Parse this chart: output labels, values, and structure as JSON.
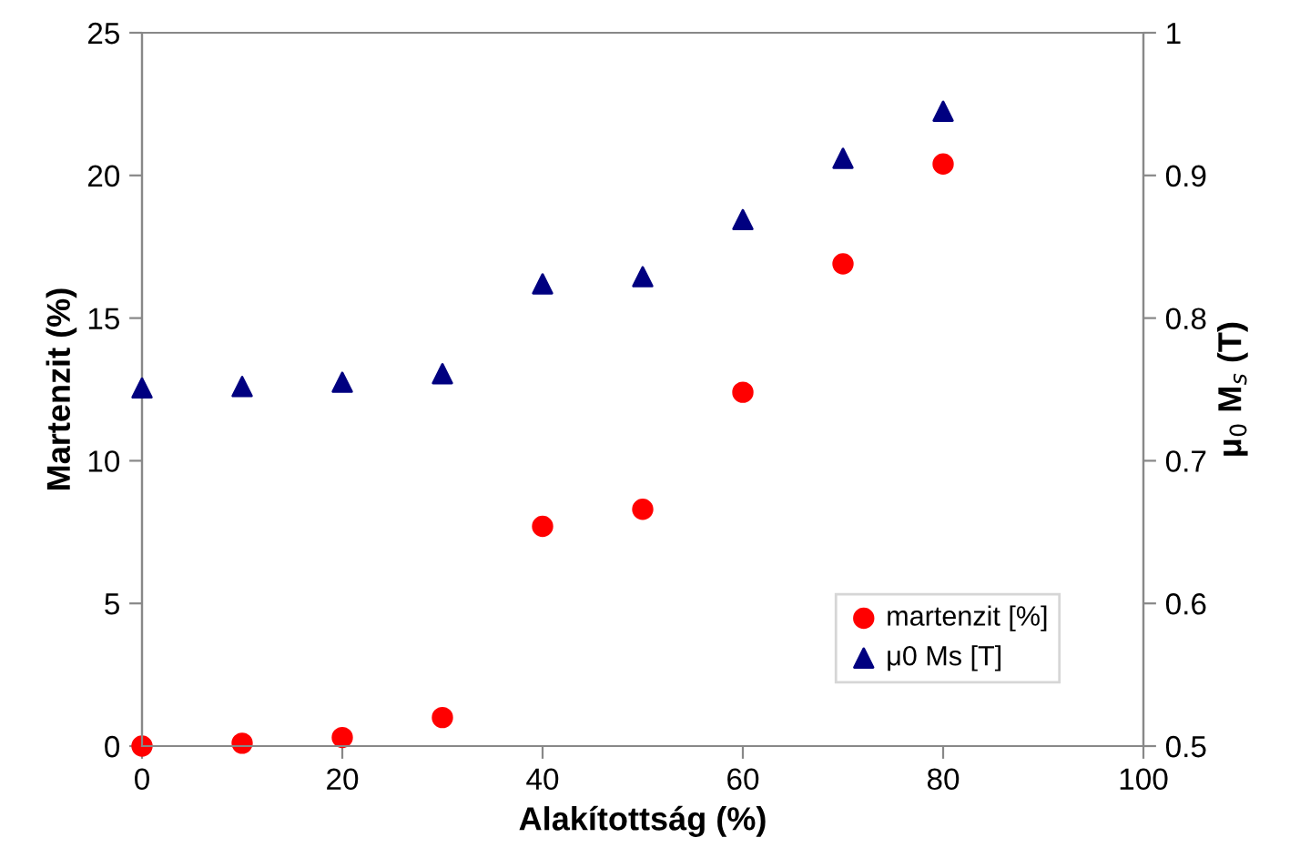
{
  "chart_data": {
    "type": "scatter",
    "xlabel": "Alakítottság (%)",
    "ylabel": "Martenzit (%)",
    "y2label": "μ$_{0}$ M$_{s}$ (T)",
    "x": [
      0,
      10,
      20,
      30,
      40,
      50,
      60,
      70,
      80
    ],
    "series": [
      {
        "name": "martenzit [%]",
        "color": "#ff0000",
        "marker": "circle",
        "values": [
          0,
          0.1,
          0.3,
          1.0,
          7.7,
          8.3,
          12.4,
          16.9,
          20.4
        ]
      },
      {
        "name": "μ0 Ms [T]",
        "color": "#000080",
        "marker": "triangle",
        "axis": "y2",
        "values": [
          0.751,
          0.752,
          0.755,
          0.761,
          0.824,
          0.829,
          0.869,
          0.912,
          0.945
        ]
      }
    ],
    "xlim": [
      0,
      100
    ],
    "xticks": [
      0,
      20,
      40,
      60,
      80,
      100
    ],
    "ylim": [
      0,
      25
    ],
    "yticks": [
      0,
      5,
      10,
      15,
      20,
      25
    ],
    "y2lim": [
      0.5,
      1
    ],
    "y2ticks": [
      0.5,
      0.6,
      0.7,
      0.8,
      0.9,
      1
    ],
    "legend": "bottom right",
    "grid": false
  }
}
